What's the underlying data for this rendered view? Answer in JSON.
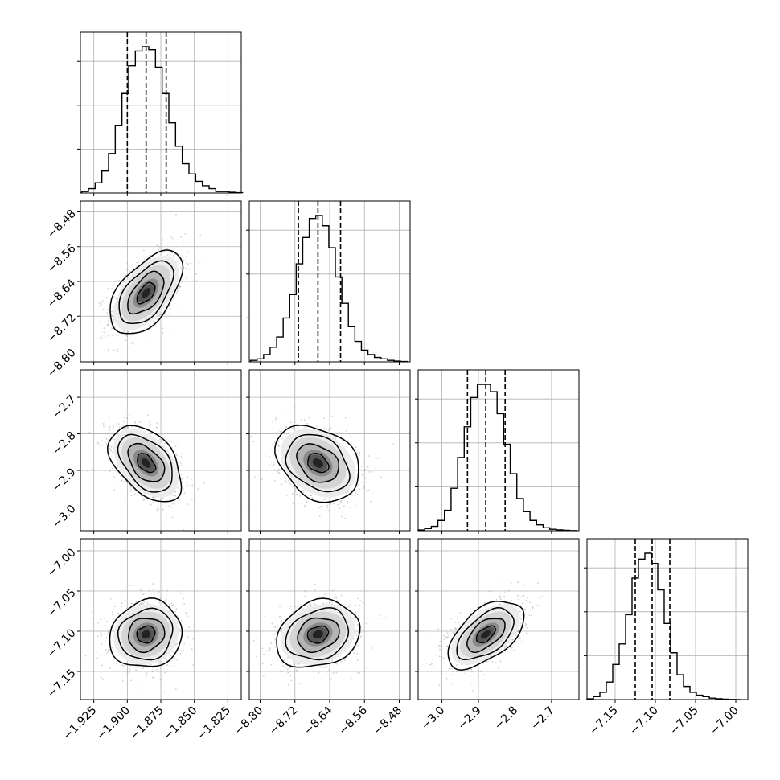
{
  "colors": {
    "ink": "#000000",
    "grid": "#b0b0b0",
    "scatter": "#9a9a9a",
    "hist_fill": "#000000"
  },
  "chart_data": {
    "type": "corner",
    "title": "",
    "grid": true,
    "quantile_lines": "dashed",
    "parameters": [
      {
        "index": 0,
        "range": [
          -1.935,
          -1.815
        ],
        "ticks": [
          -1.925,
          -1.9,
          -1.875,
          -1.85,
          -1.825
        ],
        "tick_labels": [
          "−1.925",
          "−1.900",
          "−1.875",
          "−1.850",
          "−1.825"
        ],
        "quantiles": [
          -1.9,
          -1.886,
          -1.871
        ],
        "hist_bins": [
          -1.934,
          -1.929,
          -1.924,
          -1.919,
          -1.914,
          -1.909,
          -1.904,
          -1.899,
          -1.894,
          -1.889,
          -1.884,
          -1.879,
          -1.874,
          -1.869,
          -1.864,
          -1.859,
          -1.854,
          -1.849,
          -1.844,
          -1.839,
          -1.834,
          -1.829,
          -1.824,
          -1.819,
          -1.814
        ],
        "hist_counts": [
          0.01,
          0.03,
          0.07,
          0.15,
          0.27,
          0.46,
          0.68,
          0.87,
          0.97,
          1.0,
          0.98,
          0.86,
          0.68,
          0.48,
          0.32,
          0.2,
          0.13,
          0.08,
          0.05,
          0.03,
          0.01,
          0.01,
          0.005,
          0.002
        ],
        "hist_yticks": [
          0.3,
          0.6,
          0.9
        ]
      },
      {
        "index": 1,
        "range": [
          -8.825,
          -8.455
        ],
        "ticks": [
          -8.8,
          -8.72,
          -8.64,
          -8.56,
          -8.48
        ],
        "tick_labels": [
          "−8.80",
          "−8.72",
          "−8.64",
          "−8.56",
          "−8.48"
        ],
        "quantiles": [
          -8.712,
          -8.667,
          -8.615
        ],
        "hist_bins": [
          -8.822,
          -8.807,
          -8.792,
          -8.777,
          -8.762,
          -8.747,
          -8.732,
          -8.717,
          -8.702,
          -8.687,
          -8.672,
          -8.657,
          -8.642,
          -8.627,
          -8.612,
          -8.597,
          -8.582,
          -8.567,
          -8.552,
          -8.537,
          -8.522,
          -8.507,
          -8.492,
          -8.477,
          -8.462
        ],
        "hist_counts": [
          0.01,
          0.02,
          0.05,
          0.1,
          0.17,
          0.3,
          0.46,
          0.67,
          0.85,
          0.98,
          1.0,
          0.93,
          0.78,
          0.58,
          0.4,
          0.24,
          0.14,
          0.08,
          0.05,
          0.03,
          0.02,
          0.01,
          0.005,
          0.002
        ],
        "hist_yticks": [
          0.3,
          0.6,
          0.9
        ]
      },
      {
        "index": 2,
        "range": [
          -3.065,
          -2.625
        ],
        "ticks": [
          -3.0,
          -2.9,
          -2.8,
          -2.7
        ],
        "tick_labels": [
          "−3.0",
          "−2.9",
          "−2.8",
          "−2.7"
        ],
        "quantiles": [
          -2.93,
          -2.88,
          -2.827
        ],
        "hist_bins": [
          -3.065,
          -3.047,
          -3.029,
          -3.011,
          -2.993,
          -2.975,
          -2.957,
          -2.939,
          -2.921,
          -2.903,
          -2.885,
          -2.867,
          -2.849,
          -2.831,
          -2.813,
          -2.795,
          -2.777,
          -2.759,
          -2.741,
          -2.723,
          -2.705,
          -2.687,
          -2.669,
          -2.651,
          -2.633
        ],
        "hist_counts": [
          0.005,
          0.015,
          0.03,
          0.07,
          0.14,
          0.29,
          0.5,
          0.71,
          0.91,
          1.0,
          1.0,
          0.95,
          0.8,
          0.59,
          0.39,
          0.22,
          0.13,
          0.07,
          0.04,
          0.02,
          0.01,
          0.006,
          0.003,
          0.001
        ],
        "hist_yticks": [
          0.3,
          0.6,
          0.9
        ]
      },
      {
        "index": 3,
        "range": [
          -7.185,
          -6.985
        ],
        "ticks": [
          -7.15,
          -7.1,
          -7.05,
          -7.0
        ],
        "tick_labels": [
          "−7.15",
          "−7.10",
          "−7.05",
          "−7.00"
        ],
        "quantiles": [
          -7.125,
          -7.104,
          -7.082
        ],
        "hist_bins": [
          -7.185,
          -7.177,
          -7.169,
          -7.161,
          -7.153,
          -7.145,
          -7.137,
          -7.129,
          -7.121,
          -7.113,
          -7.105,
          -7.097,
          -7.089,
          -7.081,
          -7.073,
          -7.065,
          -7.057,
          -7.049,
          -7.041,
          -7.033,
          -7.025,
          -7.017,
          -7.009,
          -7.001,
          -6.993
        ],
        "hist_counts": [
          0.005,
          0.02,
          0.05,
          0.12,
          0.24,
          0.38,
          0.58,
          0.83,
          0.96,
          1.0,
          0.93,
          0.75,
          0.52,
          0.32,
          0.17,
          0.09,
          0.05,
          0.03,
          0.02,
          0.01,
          0.006,
          0.003,
          0.001,
          0.0
        ],
        "hist_yticks": [
          0.3,
          0.6,
          0.9
        ]
      }
    ],
    "pairs": [
      {
        "x": 0,
        "y": 1,
        "mean": [
          -1.886,
          -8.667
        ],
        "sd": [
          0.0135,
          0.048
        ],
        "corr": 0.55
      },
      {
        "x": 0,
        "y": 2,
        "mean": [
          -1.886,
          -2.88
        ],
        "sd": [
          0.0135,
          0.052
        ],
        "corr": -0.45
      },
      {
        "x": 1,
        "y": 2,
        "mean": [
          -8.667,
          -2.88
        ],
        "sd": [
          0.048,
          0.052
        ],
        "corr": -0.3
      },
      {
        "x": 0,
        "y": 3,
        "mean": [
          -1.886,
          -7.104
        ],
        "sd": [
          0.0135,
          0.021
        ],
        "corr": 0.1
      },
      {
        "x": 1,
        "y": 3,
        "mean": [
          -8.667,
          -7.104
        ],
        "sd": [
          0.048,
          0.021
        ],
        "corr": 0.2
      },
      {
        "x": 2,
        "y": 3,
        "mean": [
          -2.88,
          -7.104
        ],
        "sd": [
          0.052,
          0.021
        ],
        "corr": 0.55
      }
    ],
    "contour_levels_sigma": [
      0.5,
      1.0,
      1.5,
      2.0
    ]
  }
}
